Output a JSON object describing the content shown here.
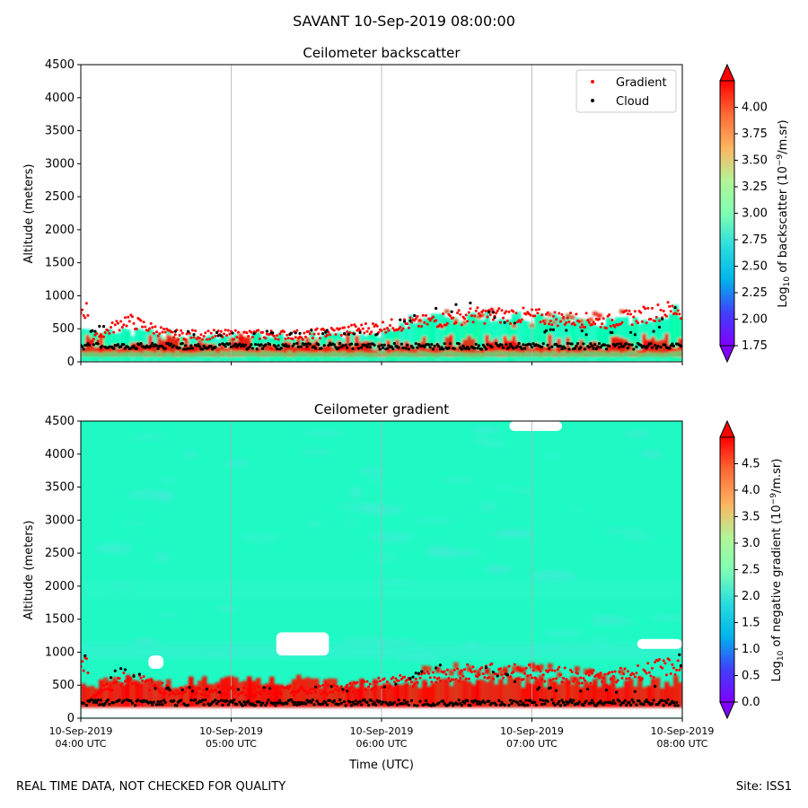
{
  "figure": {
    "suptitle": "SAVANT 10-Sep-2019 08:00:00",
    "footer_left": "REAL TIME DATA, NOT CHECKED FOR QUALITY",
    "footer_right": "Site: ISS1"
  },
  "colors": {
    "gradient_marker": "#ff0000",
    "cloud_marker": "#000000",
    "grid": "#b0b0b0",
    "colormap": "rainbow"
  },
  "chart_data": [
    {
      "type": "heatmap",
      "title": "Ceilometer backscatter",
      "xlabel": "",
      "ylabel": "Altitude (meters)",
      "ylim": [
        0,
        4500
      ],
      "yticks": [
        0,
        500,
        1000,
        1500,
        2000,
        2500,
        3000,
        3500,
        4000,
        4500
      ],
      "xlim": [
        "04:00",
        "08:00"
      ],
      "xticks": [
        "04:00",
        "05:00",
        "06:00",
        "07:00",
        "08:00"
      ],
      "xtick_labels": [],
      "grid": "vertical at x ticks",
      "legend": {
        "placement": "top-right",
        "entries": [
          {
            "label": "Gradient",
            "color": "#ff0000",
            "marker": "point"
          },
          {
            "label": "Cloud",
            "color": "#000000",
            "marker": "point"
          }
        ]
      },
      "colorbar": {
        "label": "Log10 of backscatter (10^-9/m.sr)",
        "range": [
          1.75,
          4.25
        ],
        "ticks": [
          1.75,
          2.0,
          2.25,
          2.5,
          2.75,
          3.0,
          3.25,
          3.5,
          3.75,
          4.0
        ],
        "extend": "both"
      },
      "field": {
        "aerosol_layer_top_m": [
          [
            0.0,
            500
          ],
          [
            0.3,
            450
          ],
          [
            0.6,
            420
          ],
          [
            1.0,
            380
          ],
          [
            1.5,
            400
          ],
          [
            2.0,
            420
          ],
          [
            2.2,
            650
          ],
          [
            2.5,
            700
          ],
          [
            3.0,
            650
          ],
          [
            3.5,
            600
          ],
          [
            3.8,
            650
          ],
          [
            4.0,
            800
          ]
        ],
        "hotspots": [
          {
            "t": 0.3,
            "alt": 650,
            "value": 3.0
          },
          {
            "t": 2.5,
            "alt": 700,
            "value": 3.9
          },
          {
            "t": 3.9,
            "alt": 780,
            "value": 4.1
          }
        ]
      },
      "series": [
        {
          "name": "Gradient",
          "points": [
            [
              0.05,
              300
            ],
            [
              0.3,
              650
            ],
            [
              0.6,
              420
            ],
            [
              1.5,
              420
            ],
            [
              2.3,
              620
            ],
            [
              2.6,
              720
            ],
            [
              2.9,
              720
            ],
            [
              3.5,
              620
            ],
            [
              3.9,
              800
            ]
          ]
        },
        {
          "name": "Cloud",
          "points": [
            [
              0.05,
              240
            ],
            [
              0.3,
              600
            ],
            [
              0.5,
              260
            ],
            [
              1.0,
              220
            ],
            [
              1.5,
              250
            ],
            [
              2.0,
              230
            ],
            [
              2.3,
              600
            ],
            [
              2.6,
              650
            ],
            [
              3.0,
              260
            ],
            [
              3.5,
              230
            ],
            [
              3.8,
              200
            ],
            [
              3.95,
              700
            ]
          ]
        }
      ]
    },
    {
      "type": "heatmap",
      "title": "Ceilometer gradient",
      "xlabel": "Time (UTC)",
      "ylabel": "Altitude (meters)",
      "ylim": [
        0,
        4500
      ],
      "yticks": [
        0,
        500,
        1000,
        1500,
        2000,
        2500,
        3000,
        3500,
        4000,
        4500
      ],
      "xlim": [
        "04:00",
        "08:00"
      ],
      "xticks": [
        "04:00",
        "05:00",
        "06:00",
        "07:00",
        "08:00"
      ],
      "xtick_labels": [
        [
          "10-Sep-2019",
          "04:00 UTC"
        ],
        [
          "10-Sep-2019",
          "05:00 UTC"
        ],
        [
          "10-Sep-2019",
          "06:00 UTC"
        ],
        [
          "10-Sep-2019",
          "07:00 UTC"
        ],
        [
          "10-Sep-2019",
          "08:00 UTC"
        ]
      ],
      "grid": "vertical at x ticks",
      "colorbar": {
        "label": "Log10 of negative gradient (10^-9/m.sr)",
        "range": [
          0.0,
          5.0
        ],
        "ticks": [
          0.0,
          0.5,
          1.0,
          1.5,
          2.0,
          2.5,
          3.0,
          3.5,
          4.0,
          4.5
        ],
        "extend": "both"
      },
      "field": {
        "background_value": 2.0,
        "clear_patches": [
          {
            "t": [
              1.3,
              1.65
            ],
            "alt": [
              950,
              1300
            ]
          },
          {
            "t": [
              0.45,
              0.55
            ],
            "alt": [
              750,
              950
            ]
          },
          {
            "t": [
              3.7,
              4.0
            ],
            "alt": [
              1050,
              1200
            ]
          },
          {
            "t": [
              2.85,
              3.2
            ],
            "alt": [
              4350,
              4500
            ]
          }
        ],
        "surface_band_m": [
          150,
          600
        ],
        "surface_value": 4.6
      },
      "series": [
        {
          "name": "Gradient",
          "points": [
            [
              0.05,
              300
            ],
            [
              0.3,
              650
            ],
            [
              0.6,
              420
            ],
            [
              1.5,
              420
            ],
            [
              2.3,
              620
            ],
            [
              2.6,
              720
            ],
            [
              2.9,
              720
            ],
            [
              3.5,
              620
            ],
            [
              3.9,
              800
            ]
          ]
        },
        {
          "name": "Cloud",
          "points": [
            [
              0.05,
              240
            ],
            [
              0.3,
              600
            ],
            [
              0.5,
              260
            ],
            [
              1.0,
              220
            ],
            [
              1.5,
              250
            ],
            [
              2.0,
              230
            ],
            [
              2.3,
              600
            ],
            [
              2.6,
              650
            ],
            [
              3.0,
              260
            ],
            [
              3.5,
              230
            ],
            [
              3.8,
              200
            ],
            [
              3.95,
              700
            ]
          ]
        }
      ]
    }
  ]
}
